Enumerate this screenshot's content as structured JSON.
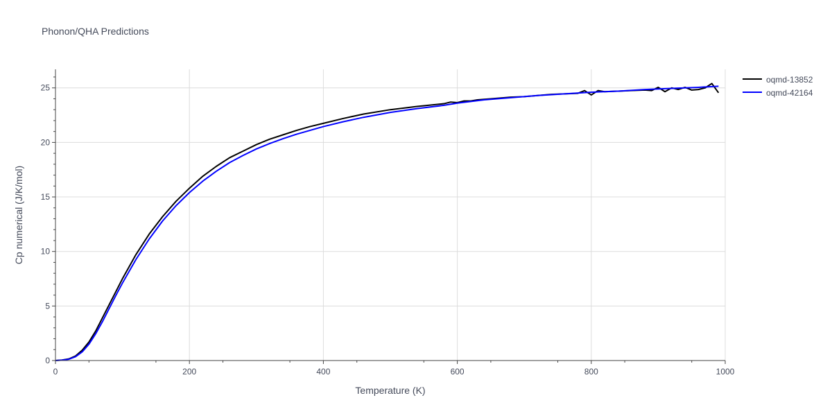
{
  "chart_data": {
    "type": "line",
    "title": "Phonon/QHA Predictions",
    "xlabel": "Temperature (K)",
    "ylabel": "Cp numerical (J/K/mol)",
    "xlim": [
      0,
      1000
    ],
    "ylim": [
      0,
      26.7
    ],
    "xticks": [
      0,
      200,
      400,
      600,
      800,
      1000
    ],
    "yticks": [
      0,
      5,
      10,
      15,
      20,
      25
    ],
    "grid": true,
    "legend_position": "top-right",
    "series": [
      {
        "name": "oqmd-13852",
        "color": "#000000",
        "x": [
          0,
          10,
          20,
          30,
          40,
          50,
          60,
          70,
          80,
          90,
          100,
          120,
          140,
          160,
          180,
          200,
          220,
          240,
          260,
          280,
          300,
          320,
          340,
          360,
          380,
          400,
          430,
          460,
          500,
          540,
          580,
          590,
          600,
          610,
          620,
          630,
          650,
          680,
          700,
          720,
          740,
          760,
          780,
          790,
          800,
          810,
          820,
          840,
          860,
          880,
          890,
          900,
          910,
          920,
          930,
          940,
          950,
          960,
          970,
          980,
          990
        ],
        "y": [
          0,
          0.05,
          0.15,
          0.42,
          0.95,
          1.7,
          2.7,
          3.9,
          5.1,
          6.3,
          7.5,
          9.7,
          11.6,
          13.2,
          14.6,
          15.8,
          16.9,
          17.8,
          18.6,
          19.2,
          19.8,
          20.3,
          20.7,
          21.1,
          21.45,
          21.75,
          22.2,
          22.6,
          23.0,
          23.3,
          23.55,
          23.7,
          23.65,
          23.8,
          23.8,
          23.9,
          24.0,
          24.15,
          24.2,
          24.3,
          24.4,
          24.45,
          24.5,
          24.75,
          24.35,
          24.75,
          24.65,
          24.7,
          24.75,
          24.8,
          24.75,
          25.05,
          24.65,
          25.0,
          24.85,
          25.05,
          24.8,
          24.85,
          25.0,
          25.4,
          24.55
        ]
      },
      {
        "name": "oqmd-42164",
        "color": "#0000ff",
        "x": [
          0,
          10,
          20,
          30,
          40,
          50,
          60,
          70,
          80,
          90,
          100,
          120,
          140,
          160,
          180,
          200,
          220,
          240,
          260,
          280,
          300,
          320,
          340,
          360,
          380,
          400,
          430,
          460,
          500,
          540,
          580,
          600,
          640,
          680,
          720,
          760,
          800,
          840,
          880,
          920,
          960,
          990
        ],
        "y": [
          0,
          0.04,
          0.12,
          0.35,
          0.8,
          1.5,
          2.45,
          3.55,
          4.75,
          5.95,
          7.1,
          9.25,
          11.15,
          12.8,
          14.2,
          15.4,
          16.45,
          17.35,
          18.15,
          18.8,
          19.4,
          19.9,
          20.35,
          20.75,
          21.1,
          21.45,
          21.9,
          22.3,
          22.75,
          23.1,
          23.4,
          23.6,
          23.9,
          24.1,
          24.3,
          24.45,
          24.6,
          24.7,
          24.85,
          24.95,
          25.05,
          25.15
        ]
      }
    ]
  }
}
